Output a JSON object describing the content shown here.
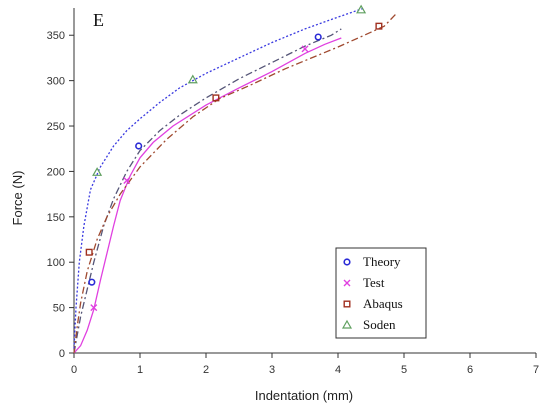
{
  "chart_data": {
    "type": "scatter",
    "panel_label": "E",
    "xlabel": "Indentation (mm)",
    "ylabel": "Force (N)",
    "xlim": [
      0,
      7
    ],
    "ylim": [
      0,
      380
    ],
    "xticks": [
      0,
      1,
      2,
      3,
      4,
      5,
      6,
      7
    ],
    "yticks": [
      0,
      50,
      100,
      150,
      200,
      250,
      300,
      350
    ],
    "grid": false,
    "legend_position": "bottom-right",
    "series": [
      {
        "name": "Theory",
        "marker": "circle",
        "color": "#2b2bd6",
        "line_style": "dash-dot",
        "line_color": "#555577",
        "points": [
          [
            0.27,
            78
          ],
          [
            0.98,
            228
          ],
          [
            3.7,
            348
          ]
        ],
        "curve": [
          [
            0.0,
            0
          ],
          [
            0.05,
            20
          ],
          [
            0.1,
            40
          ],
          [
            0.2,
            70
          ],
          [
            0.3,
            100
          ],
          [
            0.45,
            140
          ],
          [
            0.6,
            170
          ],
          [
            0.8,
            200
          ],
          [
            1.0,
            223
          ],
          [
            1.3,
            245
          ],
          [
            1.6,
            262
          ],
          [
            2.0,
            281
          ],
          [
            2.5,
            302
          ],
          [
            3.0,
            320
          ],
          [
            3.5,
            338
          ],
          [
            3.9,
            350
          ],
          [
            4.05,
            357
          ]
        ]
      },
      {
        "name": "Test",
        "marker": "x",
        "color": "#e040e0",
        "line_style": "solid",
        "line_color": "#e040e0",
        "points": [
          [
            0.3,
            50
          ],
          [
            0.8,
            190
          ],
          [
            3.5,
            335
          ]
        ],
        "curve": [
          [
            0.0,
            0
          ],
          [
            0.1,
            8
          ],
          [
            0.2,
            25
          ],
          [
            0.3,
            48
          ],
          [
            0.4,
            80
          ],
          [
            0.5,
            110
          ],
          [
            0.6,
            140
          ],
          [
            0.7,
            168
          ],
          [
            0.85,
            195
          ],
          [
            1.0,
            215
          ],
          [
            1.2,
            232
          ],
          [
            1.5,
            250
          ],
          [
            2.0,
            273
          ],
          [
            2.5,
            292
          ],
          [
            3.0,
            310
          ],
          [
            3.5,
            330
          ],
          [
            3.8,
            340
          ],
          [
            4.05,
            347
          ]
        ]
      },
      {
        "name": "Abaqus",
        "marker": "square",
        "color": "#a03020",
        "line_style": "dash-dot",
        "line_color": "#a04a30",
        "points": [
          [
            0.23,
            111
          ],
          [
            2.15,
            281
          ],
          [
            4.62,
            360
          ]
        ],
        "curve": [
          [
            0.0,
            0
          ],
          [
            0.05,
            30
          ],
          [
            0.1,
            55
          ],
          [
            0.2,
            90
          ],
          [
            0.35,
            125
          ],
          [
            0.5,
            150
          ],
          [
            0.7,
            175
          ],
          [
            1.0,
            205
          ],
          [
            1.4,
            235
          ],
          [
            1.8,
            260
          ],
          [
            2.2,
            280
          ],
          [
            2.7,
            296
          ],
          [
            3.2,
            313
          ],
          [
            3.6,
            325
          ],
          [
            4.0,
            337
          ],
          [
            4.4,
            350
          ],
          [
            4.7,
            360
          ],
          [
            4.9,
            375
          ]
        ]
      },
      {
        "name": "Soden",
        "marker": "triangle",
        "color": "#60a060",
        "line_style": "dotted",
        "line_color": "#3a3ae0",
        "points": [
          [
            0.35,
            199
          ],
          [
            1.8,
            301
          ],
          [
            4.35,
            378
          ]
        ],
        "curve": [
          [
            0.0,
            5
          ],
          [
            0.03,
            50
          ],
          [
            0.08,
            100
          ],
          [
            0.15,
            140
          ],
          [
            0.25,
            180
          ],
          [
            0.4,
            205
          ],
          [
            0.6,
            228
          ],
          [
            0.8,
            245
          ],
          [
            1.0,
            258
          ],
          [
            1.3,
            276
          ],
          [
            1.6,
            292
          ],
          [
            2.0,
            308
          ],
          [
            2.5,
            325
          ],
          [
            3.0,
            342
          ],
          [
            3.5,
            357
          ],
          [
            4.0,
            370
          ],
          [
            4.4,
            380
          ]
        ]
      }
    ]
  }
}
